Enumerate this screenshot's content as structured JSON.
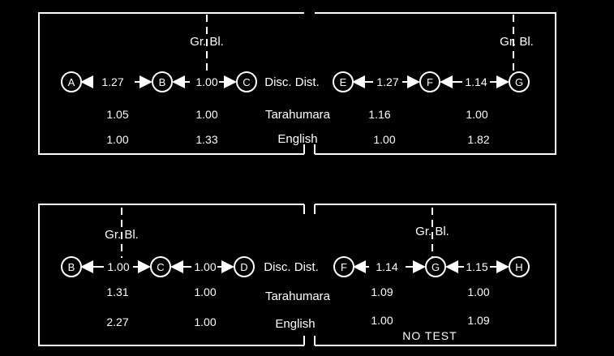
{
  "top": {
    "left_box": {
      "boundary_label": "Gr. Bl.",
      "nodes": [
        "A",
        "B",
        "C"
      ],
      "distances": [
        "1.27",
        "1.00"
      ],
      "tarahumara": [
        "1.05",
        "1.00"
      ],
      "english": [
        "1.00",
        "1.33"
      ]
    },
    "center": {
      "disc_dist": "Disc. Dist.",
      "tarahumara": "Tarahumara",
      "english": "English"
    },
    "right_box": {
      "boundary_label": "Gr. Bl.",
      "nodes": [
        "E",
        "F",
        "G"
      ],
      "distances": [
        "1.27",
        "1.14"
      ],
      "tarahumara": [
        "1.16",
        "1.00"
      ],
      "english": [
        "1.00",
        "1.82"
      ]
    }
  },
  "bottom": {
    "left_box": {
      "boundary_label": "Gr. Bl.",
      "nodes": [
        "B",
        "C",
        "D"
      ],
      "distances": [
        "1.00",
        "1.00"
      ],
      "tarahumara": [
        "1.31",
        "1.00"
      ],
      "english": [
        "2.27",
        "1.00"
      ]
    },
    "center": {
      "disc_dist": "Disc. Dist.",
      "tarahumara": "Tarahumara",
      "english": "English"
    },
    "right_box": {
      "boundary_label": "Gr. Bl.",
      "nodes": [
        "F",
        "G",
        "H"
      ],
      "distances": [
        "1.14",
        "1.15"
      ],
      "tarahumara": [
        "1.09",
        "1.00"
      ],
      "english": [
        "1.00",
        "1.09"
      ],
      "note": "NO TEST"
    }
  }
}
